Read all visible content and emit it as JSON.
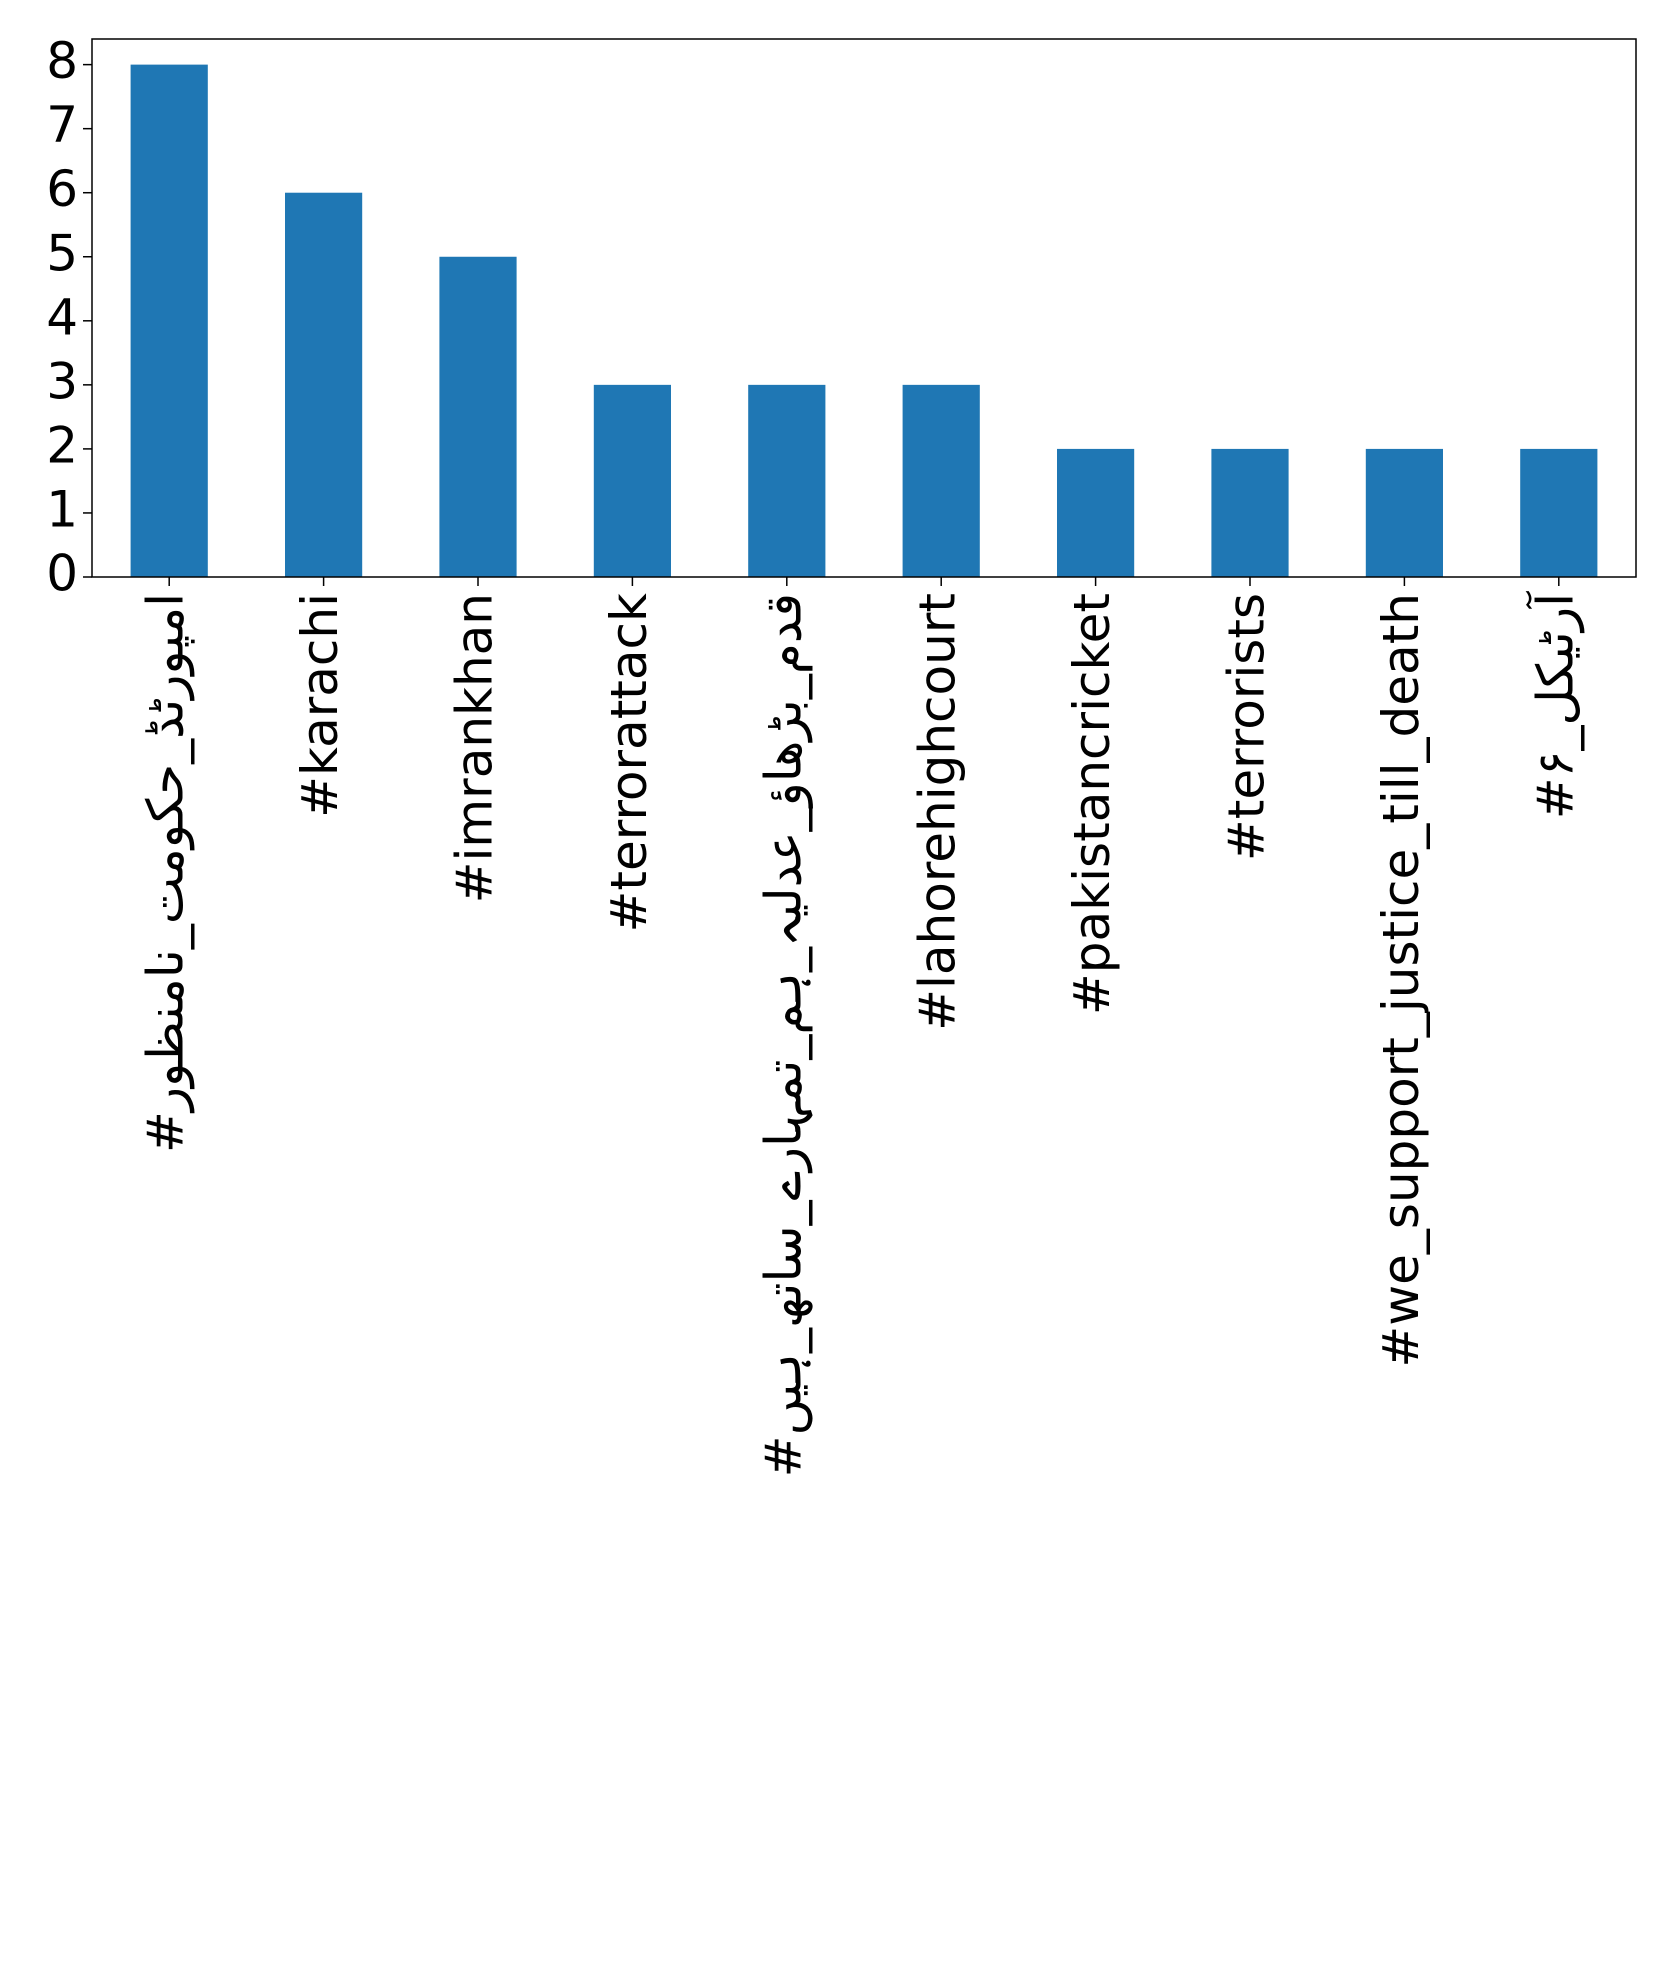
{
  "chart_data": {
    "type": "bar",
    "categories": [
      "#امپورٹڈ_حکومت_نامنظور",
      "#karachi",
      "#imrankhan",
      "#terrorattack",
      "#قدم_بڑھاؤ_عدلیہ_ہم_تمہارے_ساتھ_ہیں",
      "#lahorehighcourt",
      "#pakistancricket",
      "#terrorists",
      "#we_support_justice_till_death",
      "#آرٹیکل_۶"
    ],
    "values": [
      8,
      6,
      5,
      3,
      3,
      3,
      2,
      2,
      2,
      2
    ],
    "color": "#1f77b4",
    "ylim": [
      0,
      8.4
    ],
    "yticks": [
      0,
      1,
      2,
      3,
      4,
      5,
      6,
      7,
      8
    ],
    "grid": false
  }
}
